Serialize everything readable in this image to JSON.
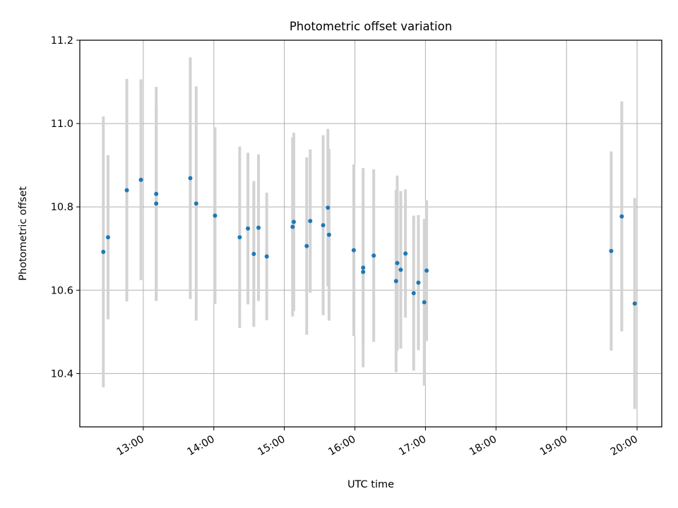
{
  "chart_data": {
    "type": "scatter",
    "title": "Photometric offset variation",
    "xlabel": "UTC time",
    "ylabel": "Photometric offset",
    "x_tick_labels": [
      "13:00",
      "14:00",
      "15:00",
      "16:00",
      "17:00",
      "18:00",
      "19:00",
      "20:00"
    ],
    "y_tick_labels": [
      "10.4",
      "10.6",
      "10.8",
      "11.0",
      "11.2"
    ],
    "xlim": [
      "12:06",
      "20:21"
    ],
    "ylim": [
      10.272,
      11.2
    ],
    "grid": true,
    "colors": {
      "marker": "#1f77b4",
      "errorbar": "#d3d3d3",
      "grid": "#b0b0b0"
    },
    "points": [
      {
        "t": "12:26",
        "y": 10.692,
        "err": 0.325
      },
      {
        "t": "12:30",
        "y": 10.727,
        "err": 0.197
      },
      {
        "t": "12:46",
        "y": 10.84,
        "err": 0.267
      },
      {
        "t": "12:58",
        "y": 10.865,
        "err": 0.241
      },
      {
        "t": "13:11",
        "y": 10.831,
        "err": 0.257
      },
      {
        "t": "13:11",
        "y": 10.808,
        "err": 0.233
      },
      {
        "t": "13:40",
        "y": 10.869,
        "err": 0.29
      },
      {
        "t": "13:45",
        "y": 10.808,
        "err": 0.281
      },
      {
        "t": "14:01",
        "y": 10.779,
        "err": 0.212
      },
      {
        "t": "14:22",
        "y": 10.727,
        "err": 0.218
      },
      {
        "t": "14:29",
        "y": 10.748,
        "err": 0.182
      },
      {
        "t": "14:34",
        "y": 10.687,
        "err": 0.175
      },
      {
        "t": "14:38",
        "y": 10.75,
        "err": 0.176
      },
      {
        "t": "14:45",
        "y": 10.681,
        "err": 0.153
      },
      {
        "t": "15:07",
        "y": 10.752,
        "err": 0.215
      },
      {
        "t": "15:08",
        "y": 10.764,
        "err": 0.214
      },
      {
        "t": "15:19",
        "y": 10.706,
        "err": 0.213
      },
      {
        "t": "15:22",
        "y": 10.766,
        "err": 0.172
      },
      {
        "t": "15:33",
        "y": 10.756,
        "err": 0.216
      },
      {
        "t": "15:37",
        "y": 10.798,
        "err": 0.189
      },
      {
        "t": "15:38",
        "y": 10.733,
        "err": 0.206
      },
      {
        "t": "15:59",
        "y": 10.696,
        "err": 0.206
      },
      {
        "t": "16:07",
        "y": 10.654,
        "err": 0.239
      },
      {
        "t": "16:07",
        "y": 10.644,
        "err": 0.168
      },
      {
        "t": "16:16",
        "y": 10.683,
        "err": 0.207
      },
      {
        "t": "16:35",
        "y": 10.622,
        "err": 0.219
      },
      {
        "t": "16:36",
        "y": 10.665,
        "err": 0.21
      },
      {
        "t": "16:39",
        "y": 10.649,
        "err": 0.189
      },
      {
        "t": "16:43",
        "y": 10.688,
        "err": 0.154
      },
      {
        "t": "16:50",
        "y": 10.593,
        "err": 0.186
      },
      {
        "t": "16:54",
        "y": 10.618,
        "err": 0.162
      },
      {
        "t": "16:59",
        "y": 10.571,
        "err": 0.2
      },
      {
        "t": "17:01",
        "y": 10.647,
        "err": 0.169
      },
      {
        "t": "19:38",
        "y": 10.694,
        "err": 0.239
      },
      {
        "t": "19:47",
        "y": 10.777,
        "err": 0.276
      },
      {
        "t": "19:58",
        "y": 10.568,
        "err": 0.253
      }
    ]
  }
}
